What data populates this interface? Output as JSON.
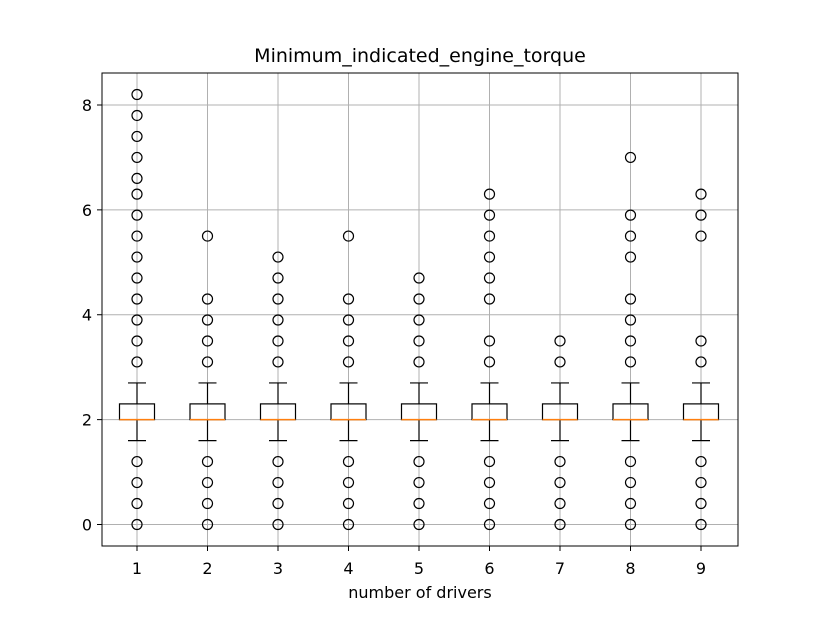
{
  "chart_data": {
    "type": "boxplot",
    "title": "Minimum_indicated_engine_torque",
    "xlabel": "number of drivers",
    "ylabel": "",
    "categories": [
      "1",
      "2",
      "3",
      "4",
      "5",
      "6",
      "7",
      "8",
      "9"
    ],
    "yticks": [
      0,
      2,
      4,
      6,
      8
    ],
    "ylim": [
      -0.41,
      8.61
    ],
    "grid": true,
    "colors": {
      "box": "#000000",
      "median": "#ff7f0e",
      "grid": "#b0b0b0",
      "flier": "#000000"
    },
    "boxes": [
      {
        "category": "1",
        "whisker_low": 1.6,
        "q1": 2.0,
        "median": 2.0,
        "q3": 2.3,
        "whisker_high": 2.7,
        "fliers": [
          0,
          0.4,
          0.8,
          1.2,
          3.1,
          3.5,
          3.9,
          4.3,
          4.7,
          5.1,
          5.5,
          5.9,
          6.3,
          6.6,
          7.0,
          7.4,
          7.8,
          8.2
        ]
      },
      {
        "category": "2",
        "whisker_low": 1.6,
        "q1": 2.0,
        "median": 2.0,
        "q3": 2.3,
        "whisker_high": 2.7,
        "fliers": [
          0,
          0.4,
          0.8,
          1.2,
          3.1,
          3.5,
          3.9,
          4.3,
          5.5
        ]
      },
      {
        "category": "3",
        "whisker_low": 1.6,
        "q1": 2.0,
        "median": 2.0,
        "q3": 2.3,
        "whisker_high": 2.7,
        "fliers": [
          0,
          0.4,
          0.8,
          1.2,
          3.1,
          3.5,
          3.9,
          4.3,
          4.7,
          5.1
        ]
      },
      {
        "category": "4",
        "whisker_low": 1.6,
        "q1": 2.0,
        "median": 2.0,
        "q3": 2.3,
        "whisker_high": 2.7,
        "fliers": [
          0,
          0.4,
          0.8,
          1.2,
          3.1,
          3.5,
          3.9,
          4.3,
          5.5
        ]
      },
      {
        "category": "5",
        "whisker_low": 1.6,
        "q1": 2.0,
        "median": 2.0,
        "q3": 2.3,
        "whisker_high": 2.7,
        "fliers": [
          0,
          0.4,
          0.8,
          1.2,
          3.1,
          3.5,
          3.9,
          4.3,
          4.7
        ]
      },
      {
        "category": "6",
        "whisker_low": 1.6,
        "q1": 2.0,
        "median": 2.0,
        "q3": 2.3,
        "whisker_high": 2.7,
        "fliers": [
          0,
          0.4,
          0.8,
          1.2,
          3.1,
          3.5,
          4.3,
          4.7,
          5.1,
          5.5,
          5.9,
          6.3
        ]
      },
      {
        "category": "7",
        "whisker_low": 1.6,
        "q1": 2.0,
        "median": 2.0,
        "q3": 2.3,
        "whisker_high": 2.7,
        "fliers": [
          0,
          0.4,
          0.8,
          1.2,
          3.1,
          3.5
        ]
      },
      {
        "category": "8",
        "whisker_low": 1.6,
        "q1": 2.0,
        "median": 2.0,
        "q3": 2.3,
        "whisker_high": 2.7,
        "fliers": [
          0,
          0.4,
          0.8,
          1.2,
          3.1,
          3.5,
          3.9,
          4.3,
          5.1,
          5.5,
          5.9,
          7.0
        ]
      },
      {
        "category": "9",
        "whisker_low": 1.6,
        "q1": 2.0,
        "median": 2.0,
        "q3": 2.3,
        "whisker_high": 2.7,
        "fliers": [
          0,
          0.4,
          0.8,
          1.2,
          3.1,
          3.5,
          5.5,
          5.9,
          6.3
        ]
      }
    ]
  }
}
